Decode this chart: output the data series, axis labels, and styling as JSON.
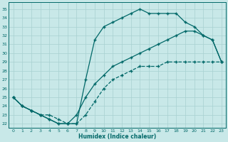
{
  "xlabel": "Humidex (Indice chaleur)",
  "bg_color": "#c8e8e8",
  "grid_color": "#a8d0d0",
  "line_color": "#006868",
  "xlim": [
    -0.5,
    23.5
  ],
  "ylim": [
    21.5,
    35.8
  ],
  "xticks": [
    0,
    1,
    2,
    3,
    4,
    5,
    6,
    7,
    8,
    9,
    10,
    11,
    12,
    13,
    14,
    15,
    16,
    17,
    18,
    19,
    20,
    21,
    22,
    23
  ],
  "yticks": [
    22,
    23,
    24,
    25,
    26,
    27,
    28,
    29,
    30,
    31,
    32,
    33,
    34,
    35
  ],
  "line1_x": [
    0,
    1,
    2,
    3,
    4,
    5,
    6,
    7,
    8,
    9,
    10,
    11,
    12,
    13,
    14,
    15,
    16,
    17,
    18,
    19,
    20,
    21,
    22,
    23
  ],
  "line1_y": [
    25.0,
    24.0,
    23.5,
    23.0,
    23.0,
    22.5,
    22.0,
    22.0,
    23.0,
    24.5,
    26.0,
    27.0,
    27.5,
    28.0,
    28.5,
    28.5,
    28.5,
    29.0,
    29.0,
    29.0,
    29.0,
    29.0,
    29.0,
    29.0
  ],
  "line2_x": [
    0,
    1,
    2,
    3,
    4,
    5,
    6,
    7,
    8,
    9,
    10,
    11,
    12,
    13,
    14,
    15,
    16,
    17,
    18,
    19,
    20,
    21,
    22,
    23
  ],
  "line2_y": [
    25.0,
    24.0,
    23.5,
    23.0,
    22.5,
    22.0,
    22.0,
    22.0,
    27.0,
    31.5,
    33.0,
    33.5,
    34.0,
    34.5,
    35.0,
    34.5,
    34.5,
    34.5,
    34.5,
    33.5,
    33.0,
    32.0,
    31.5,
    29.0
  ],
  "line3_x": [
    0,
    1,
    2,
    3,
    4,
    5,
    6,
    7,
    8,
    9,
    10,
    11,
    12,
    13,
    14,
    15,
    16,
    17,
    18,
    19,
    20,
    21,
    22,
    23
  ],
  "line3_y": [
    25.0,
    24.0,
    23.5,
    23.0,
    22.5,
    22.0,
    22.0,
    23.0,
    25.0,
    26.5,
    27.5,
    28.5,
    29.0,
    29.5,
    30.0,
    30.5,
    31.0,
    31.5,
    32.0,
    32.5,
    32.5,
    32.0,
    31.5,
    29.0
  ]
}
